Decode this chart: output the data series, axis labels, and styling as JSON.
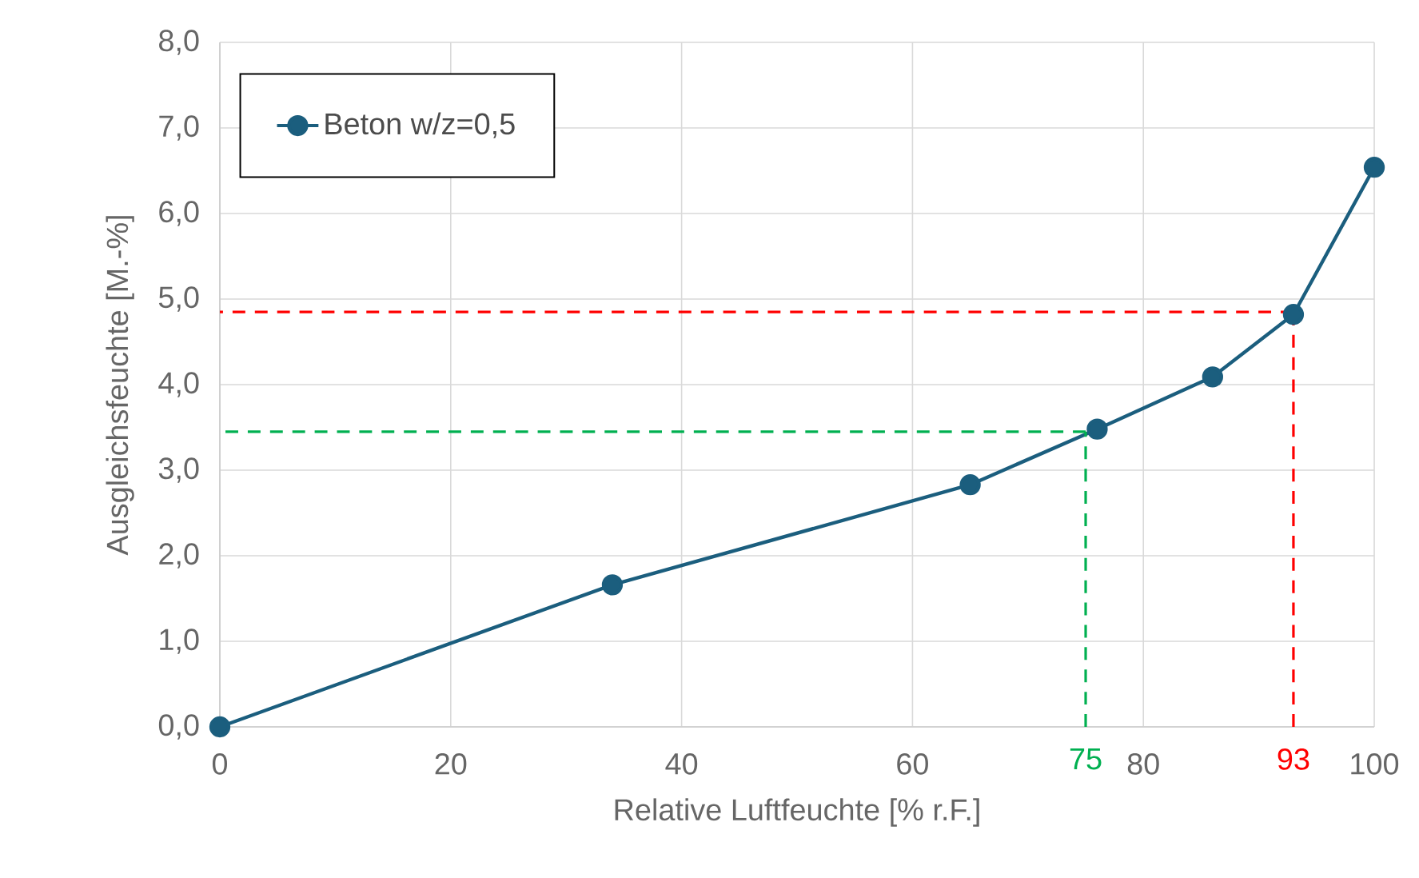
{
  "chart_data": {
    "type": "line",
    "xlabel": "Relative Luftfeuchte [% r.F.]",
    "ylabel": "Ausgleichsfeuchte [M.-%]",
    "x": [
      0,
      34,
      65,
      76,
      86,
      93,
      100
    ],
    "series": [
      {
        "name": "Beton w/z=0,5",
        "color": "#1b5e7e",
        "values": [
          0,
          1.66,
          2.83,
          3.48,
          4.09,
          4.82,
          6.54
        ]
      }
    ],
    "xlim": [
      0,
      100
    ],
    "ylim": [
      0,
      8
    ],
    "xticks": [
      0,
      20,
      40,
      60,
      80,
      100
    ],
    "yticks": [
      {
        "value": 0,
        "label": "0,0"
      },
      {
        "value": 1,
        "label": "1,0"
      },
      {
        "value": 2,
        "label": "2,0"
      },
      {
        "value": 3,
        "label": "3,0"
      },
      {
        "value": 4,
        "label": "4,0"
      },
      {
        "value": 5,
        "label": "5,0"
      },
      {
        "value": 6,
        "label": "6,0"
      },
      {
        "value": 7,
        "label": "7,0"
      },
      {
        "value": 8,
        "label": "8,0"
      }
    ],
    "ref_lines": [
      {
        "axis": "x",
        "value": 75,
        "label": "75",
        "color": "#00b050",
        "line_style": "dashed"
      },
      {
        "axis": "y",
        "value": 3.45,
        "color": "#00b050",
        "line_style": "dashed"
      },
      {
        "axis": "x",
        "value": 93,
        "label": "93",
        "color": "#ff0000",
        "line_style": "dashed"
      },
      {
        "axis": "y",
        "value": 4.85,
        "color": "#ff0000",
        "line_style": "dashed"
      }
    ],
    "grid": true,
    "legend": "top left",
    "marker": "circle",
    "line_style": "solid"
  }
}
